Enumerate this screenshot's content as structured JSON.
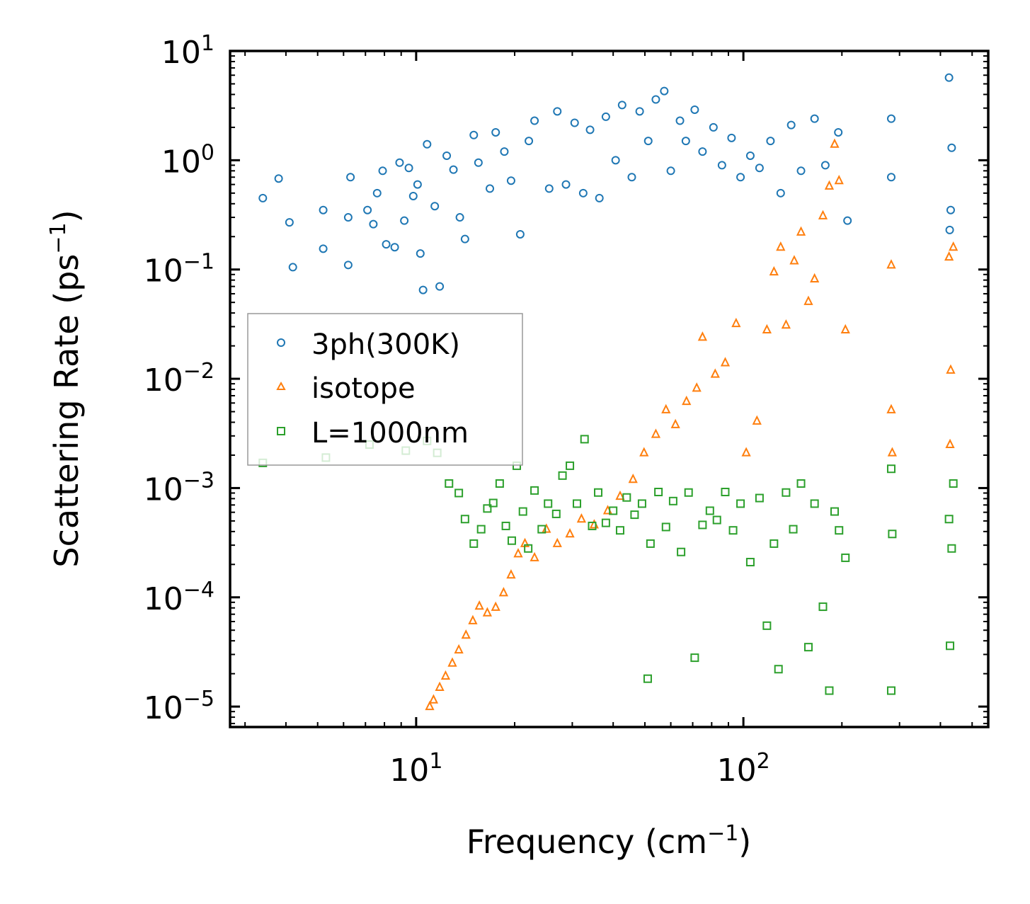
{
  "chart_data": {
    "type": "scatter",
    "title": "",
    "xlabel": "Frequency (cm",
    "xlabel_sup": "−1",
    "xlabel_end": ")",
    "ylabel": "Scattering Rate (ps",
    "ylabel_sup": "−1",
    "ylabel_end": ")",
    "xscale": "log",
    "yscale": "log",
    "xlim": [
      2.7,
      560
    ],
    "ylim": [
      6.5e-06,
      10
    ],
    "x_ticks": [
      {
        "value": 10,
        "base": "10",
        "exp": "1"
      },
      {
        "value": 100,
        "base": "10",
        "exp": "2"
      }
    ],
    "y_ticks": [
      {
        "value": 10,
        "base": "10",
        "exp": "1"
      },
      {
        "value": 1,
        "base": "10",
        "exp": "0"
      },
      {
        "value": 0.1,
        "base": "10",
        "exp": "−1"
      },
      {
        "value": 0.01,
        "base": "10",
        "exp": "−2"
      },
      {
        "value": 0.001,
        "base": "10",
        "exp": "−3"
      },
      {
        "value": 0.0001,
        "base": "10",
        "exp": "−4"
      },
      {
        "value": 1e-05,
        "base": "10",
        "exp": "−5"
      }
    ],
    "legend_position": "center-left",
    "series": [
      {
        "name": "3ph(300K)",
        "marker": "circle",
        "color": "#1f77b4",
        "points": [
          [
            3.4,
            0.45
          ],
          [
            3.8,
            0.68
          ],
          [
            4.1,
            0.27
          ],
          [
            4.2,
            0.105
          ],
          [
            5.2,
            0.35
          ],
          [
            5.2,
            0.155
          ],
          [
            6.2,
            0.3
          ],
          [
            6.2,
            0.11
          ],
          [
            6.3,
            0.7
          ],
          [
            7.1,
            0.35
          ],
          [
            7.4,
            0.26
          ],
          [
            7.6,
            0.5
          ],
          [
            7.9,
            0.8
          ],
          [
            8.1,
            0.17
          ],
          [
            8.6,
            0.16
          ],
          [
            8.9,
            0.95
          ],
          [
            9.2,
            0.28
          ],
          [
            9.5,
            0.85
          ],
          [
            9.8,
            0.47
          ],
          [
            10.1,
            0.6
          ],
          [
            10.3,
            0.14
          ],
          [
            10.5,
            0.065
          ],
          [
            10.8,
            1.4
          ],
          [
            11.4,
            0.38
          ],
          [
            11.8,
            0.07
          ],
          [
            12.4,
            1.1
          ],
          [
            13.0,
            0.82
          ],
          [
            13.6,
            0.3
          ],
          [
            14.1,
            0.19
          ],
          [
            15.0,
            1.7
          ],
          [
            15.5,
            0.95
          ],
          [
            16.8,
            0.55
          ],
          [
            17.5,
            1.8
          ],
          [
            18.6,
            1.2
          ],
          [
            19.5,
            0.65
          ],
          [
            20.8,
            0.21
          ],
          [
            22.1,
            1.5
          ],
          [
            23.0,
            2.3
          ],
          [
            25.5,
            0.55
          ],
          [
            27.0,
            2.8
          ],
          [
            28.7,
            0.6
          ],
          [
            30.5,
            2.2
          ],
          [
            32.4,
            0.5
          ],
          [
            34.0,
            1.9
          ],
          [
            36.3,
            0.45
          ],
          [
            38.0,
            2.5
          ],
          [
            40.7,
            1.0
          ],
          [
            42.6,
            3.2
          ],
          [
            45.6,
            0.7
          ],
          [
            48.2,
            2.8
          ],
          [
            51.2,
            1.5
          ],
          [
            54.0,
            3.6
          ],
          [
            57.3,
            4.3
          ],
          [
            60.0,
            0.8
          ],
          [
            64.0,
            2.3
          ],
          [
            66.7,
            1.5
          ],
          [
            71.0,
            2.9
          ],
          [
            75.0,
            1.2
          ],
          [
            81.0,
            2.0
          ],
          [
            86.0,
            0.9
          ],
          [
            92.0,
            1.6
          ],
          [
            98.0,
            0.7
          ],
          [
            105.0,
            1.1
          ],
          [
            112.0,
            0.85
          ],
          [
            121.0,
            1.5
          ],
          [
            130.0,
            0.5
          ],
          [
            140.0,
            2.1
          ],
          [
            150.0,
            0.8
          ],
          [
            165.0,
            2.4
          ],
          [
            178.0,
            0.9
          ],
          [
            195.0,
            1.8
          ],
          [
            208.0,
            0.28
          ],
          [
            283.0,
            2.4
          ],
          [
            283.0,
            0.7
          ],
          [
            425.0,
            5.7
          ],
          [
            427.0,
            0.23
          ],
          [
            433.0,
            1.3
          ],
          [
            430.0,
            0.35
          ]
        ]
      },
      {
        "name": "isotope",
        "marker": "triangle",
        "color": "#ff7f0e",
        "points": [
          [
            11.0,
            1e-05
          ],
          [
            11.3,
            1.15e-05
          ],
          [
            11.8,
            1.5e-05
          ],
          [
            12.3,
            1.9e-05
          ],
          [
            12.9,
            2.5e-05
          ],
          [
            13.5,
            3.3e-05
          ],
          [
            14.2,
            4.5e-05
          ],
          [
            14.9,
            6.1e-05
          ],
          [
            15.6,
            8.3e-05
          ],
          [
            16.5,
            7.2e-05
          ],
          [
            17.5,
            8.1e-05
          ],
          [
            18.5,
            0.00011
          ],
          [
            19.5,
            0.00016
          ],
          [
            20.5,
            0.00025
          ],
          [
            21.5,
            0.00031
          ],
          [
            23.0,
            0.00023
          ],
          [
            25.0,
            0.00042
          ],
          [
            27.0,
            0.00031
          ],
          [
            29.5,
            0.00038
          ],
          [
            32.0,
            0.00052
          ],
          [
            35.0,
            0.00046
          ],
          [
            38.5,
            0.00062
          ],
          [
            42.0,
            0.00084
          ],
          [
            46.0,
            0.0012
          ],
          [
            49.7,
            0.0021
          ],
          [
            54.0,
            0.0031
          ],
          [
            58.0,
            0.0052
          ],
          [
            62.0,
            0.0038
          ],
          [
            67.0,
            0.0062
          ],
          [
            72.0,
            0.0082
          ],
          [
            75.0,
            0.024
          ],
          [
            82.0,
            0.011
          ],
          [
            88.0,
            0.014
          ],
          [
            95.0,
            0.032
          ],
          [
            102.0,
            0.0021
          ],
          [
            110.0,
            0.0041
          ],
          [
            118.0,
            0.028
          ],
          [
            124.0,
            0.095
          ],
          [
            130.0,
            0.16
          ],
          [
            135.0,
            0.031
          ],
          [
            143.0,
            0.12
          ],
          [
            150.0,
            0.22
          ],
          [
            158.0,
            0.051
          ],
          [
            165.0,
            0.082
          ],
          [
            175.0,
            0.31
          ],
          [
            183.0,
            0.58
          ],
          [
            190.0,
            1.4
          ],
          [
            196.0,
            0.65
          ],
          [
            205.0,
            0.028
          ],
          [
            283.0,
            0.11
          ],
          [
            283.0,
            0.0052
          ],
          [
            285.0,
            0.0021
          ],
          [
            425.0,
            0.13
          ],
          [
            430.0,
            0.012
          ],
          [
            438.0,
            0.16
          ],
          [
            428.0,
            0.0025
          ]
        ]
      },
      {
        "name": "L=1000nm",
        "marker": "square",
        "color": "#2ca02c",
        "points": [
          [
            3.4,
            0.0017
          ],
          [
            5.3,
            0.0019
          ],
          [
            7.2,
            0.0025
          ],
          [
            9.3,
            0.0022
          ],
          [
            10.8,
            0.0027
          ],
          [
            11.6,
            0.0021
          ],
          [
            12.6,
            0.0011
          ],
          [
            13.5,
            0.0009
          ],
          [
            14.1,
            0.00052
          ],
          [
            15.0,
            0.00031
          ],
          [
            15.8,
            0.00042
          ],
          [
            16.5,
            0.00065
          ],
          [
            17.2,
            0.00073
          ],
          [
            18.0,
            0.0011
          ],
          [
            18.8,
            0.00045
          ],
          [
            19.6,
            0.00033
          ],
          [
            20.3,
            0.0016
          ],
          [
            21.2,
            0.00061
          ],
          [
            22.0,
            0.00028
          ],
          [
            23.0,
            0.00095
          ],
          [
            24.2,
            0.00042
          ],
          [
            25.3,
            0.00072
          ],
          [
            26.8,
            0.00058
          ],
          [
            28.0,
            0.0013
          ],
          [
            29.5,
            0.0016
          ],
          [
            31.0,
            0.00072
          ],
          [
            32.7,
            0.0028
          ],
          [
            34.5,
            0.00045
          ],
          [
            36.0,
            0.00091
          ],
          [
            38.0,
            0.00048
          ],
          [
            40.0,
            0.00062
          ],
          [
            42.0,
            0.00041
          ],
          [
            44.0,
            0.00082
          ],
          [
            46.5,
            0.00057
          ],
          [
            49.0,
            0.00072
          ],
          [
            51.0,
            1.8e-05
          ],
          [
            52.0,
            0.00031
          ],
          [
            55.0,
            0.00092
          ],
          [
            58.0,
            0.00044
          ],
          [
            61.0,
            0.00076
          ],
          [
            64.5,
            0.00026
          ],
          [
            68.0,
            0.00091
          ],
          [
            71.0,
            2.8e-05
          ],
          [
            75.0,
            0.00046
          ],
          [
            79.0,
            0.00062
          ],
          [
            83.0,
            0.00051
          ],
          [
            88.0,
            0.00092
          ],
          [
            93.0,
            0.00041
          ],
          [
            98.0,
            0.00072
          ],
          [
            105.0,
            0.00021
          ],
          [
            112.0,
            0.00081
          ],
          [
            118.0,
            5.5e-05
          ],
          [
            124.0,
            0.00031
          ],
          [
            128.0,
            2.2e-05
          ],
          [
            135.0,
            0.00091
          ],
          [
            142.0,
            0.00042
          ],
          [
            150.0,
            0.0011
          ],
          [
            158.0,
            3.5e-05
          ],
          [
            165.0,
            0.00072
          ],
          [
            175.0,
            8.2e-05
          ],
          [
            183.0,
            1.4e-05
          ],
          [
            190.0,
            0.00061
          ],
          [
            196.0,
            0.00041
          ],
          [
            205.0,
            0.00023
          ],
          [
            283.0,
            0.0015
          ],
          [
            283.0,
            1.4e-05
          ],
          [
            285.0,
            0.00038
          ],
          [
            425.0,
            0.00052
          ],
          [
            428.0,
            3.6e-05
          ],
          [
            433.0,
            0.00028
          ],
          [
            438.0,
            0.0011
          ]
        ]
      }
    ]
  }
}
